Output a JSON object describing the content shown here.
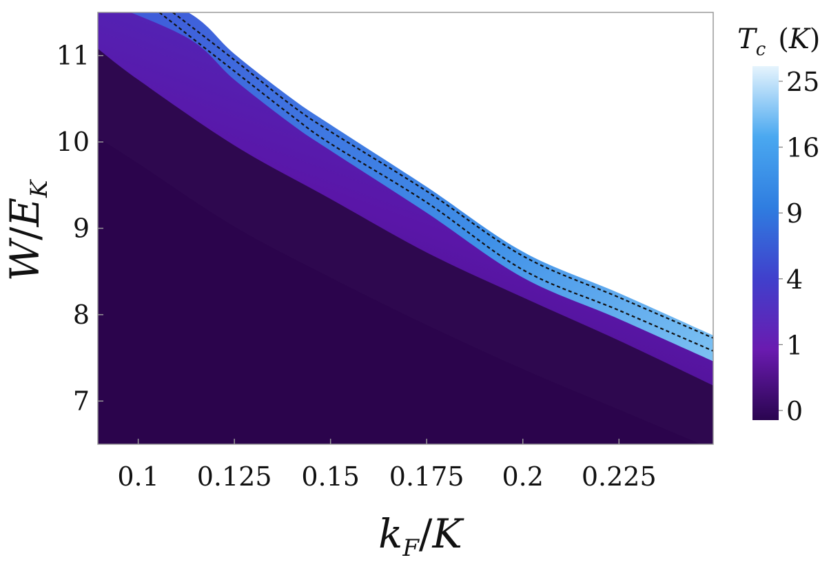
{
  "chart_data": {
    "type": "heatmap",
    "xlabel": "k_F/K",
    "ylabel": "W/E_K",
    "xlim": [
      0.0895,
      0.2495
    ],
    "ylim": [
      6.5,
      11.5
    ],
    "x_ticks": [
      {
        "value": 0.1,
        "label": "0.1"
      },
      {
        "value": 0.125,
        "label": "0.125"
      },
      {
        "value": 0.15,
        "label": "0.15"
      },
      {
        "value": 0.175,
        "label": "0.175"
      },
      {
        "value": 0.2,
        "label": "0.2"
      },
      {
        "value": 0.225,
        "label": "0.225"
      }
    ],
    "y_ticks": [
      {
        "value": 7,
        "label": "7"
      },
      {
        "value": 8,
        "label": "8"
      },
      {
        "value": 9,
        "label": "9"
      },
      {
        "value": 10,
        "label": "10"
      },
      {
        "value": 11,
        "label": "11"
      }
    ],
    "colorbar": {
      "title": "T_c (K)",
      "ticks": [
        {
          "value": 0,
          "label": "0"
        },
        {
          "value": 1,
          "label": "1"
        },
        {
          "value": 4,
          "label": "4"
        },
        {
          "value": 9,
          "label": "9"
        },
        {
          "value": 16,
          "label": "16"
        },
        {
          "value": 25,
          "label": "25"
        }
      ],
      "colors": [
        "#2a0550",
        "#6a1bb0",
        "#4040cc",
        "#2f7de0",
        "#4aa8f0",
        "#e6f4fd"
      ],
      "scale": "square-root"
    },
    "region_boundaries": {
      "upper_edge_Tc_max": {
        "x": [
          0.0895,
          0.113,
          0.125,
          0.14,
          0.15,
          0.175,
          0.2,
          0.225,
          0.2495
        ],
        "y": [
          11.95,
          11.5,
          11.02,
          10.5,
          10.2,
          9.48,
          8.73,
          8.25,
          7.76
        ]
      },
      "Tc_zero_edge": {
        "x": [
          0.0895,
          0.1,
          0.125,
          0.15,
          0.175,
          0.2,
          0.225,
          0.2495
        ],
        "y": [
          11.08,
          10.72,
          9.96,
          9.34,
          8.72,
          8.2,
          7.7,
          7.18
        ]
      },
      "inner_faint_edge": {
        "x": [
          0.0895,
          0.1,
          0.125,
          0.15,
          0.175,
          0.2,
          0.225,
          0.2495
        ],
        "y": [
          10.05,
          9.75,
          9.02,
          8.43,
          7.88,
          7.37,
          6.9,
          6.44
        ]
      }
    },
    "dashed_curves": [
      {
        "x": [
          0.109,
          0.125,
          0.14,
          0.15,
          0.175,
          0.2,
          0.225,
          0.2495
        ],
        "y": [
          11.5,
          10.95,
          10.42,
          10.12,
          9.43,
          8.68,
          8.2,
          7.73
        ]
      },
      {
        "x": [
          0.1055,
          0.125,
          0.14,
          0.15,
          0.175,
          0.2,
          0.225,
          0.2495
        ],
        "y": [
          11.5,
          10.82,
          10.3,
          9.98,
          9.3,
          8.52,
          8.05,
          7.58
        ]
      }
    ],
    "grid": false
  }
}
